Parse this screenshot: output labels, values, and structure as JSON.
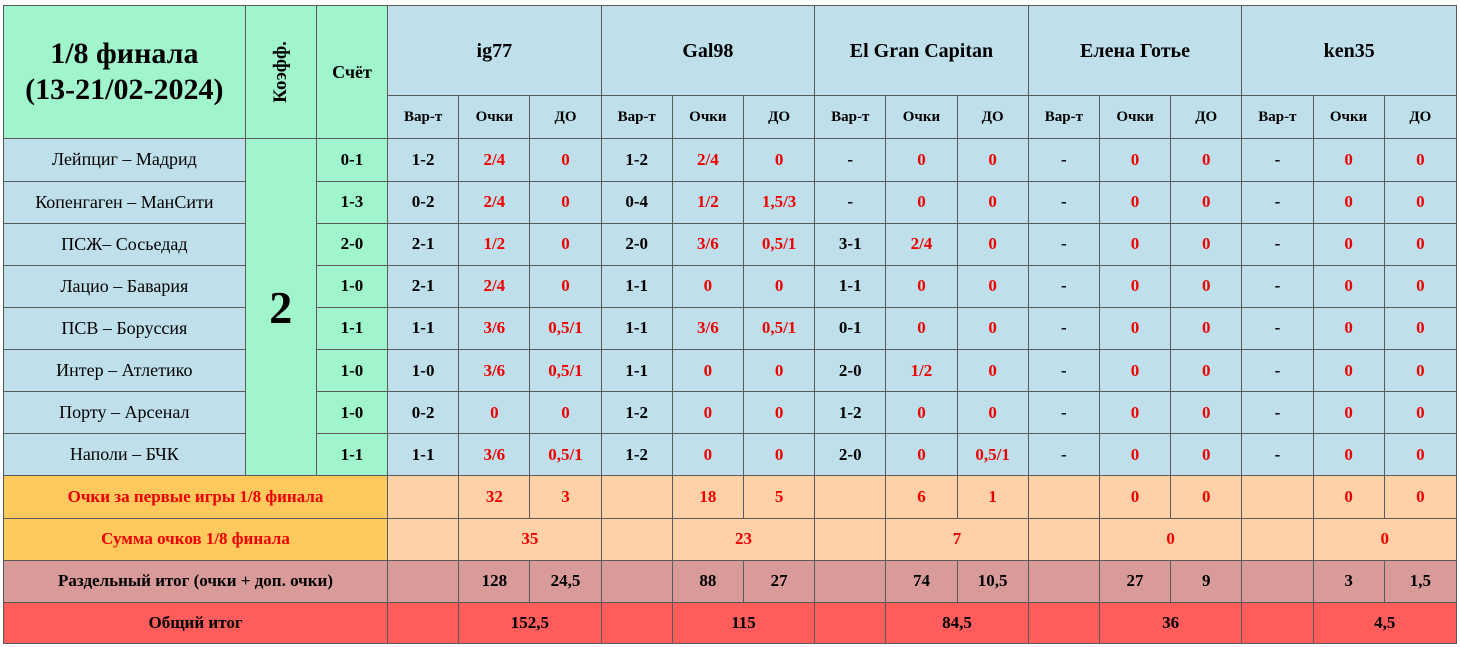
{
  "header": {
    "title_line1": "1/8 финала",
    "title_line2": "(13-21/02-2024)",
    "coef_label": "Коэфф.",
    "score_label": "Счёт",
    "sub_labels": [
      "Вар-т",
      "Очки",
      "ДО"
    ]
  },
  "coefficient": "2",
  "players": [
    {
      "name": "ig77"
    },
    {
      "name": "Gal98"
    },
    {
      "name": "El Gran Capitan"
    },
    {
      "name": "Елена Готье"
    },
    {
      "name": "ken35"
    }
  ],
  "matches": [
    {
      "name": "Лейпциг – Мадрид",
      "score": "0-1",
      "picks": [
        [
          "1-2",
          "2/4",
          "0"
        ],
        [
          "1-2",
          "2/4",
          "0"
        ],
        [
          "-",
          "0",
          "0"
        ],
        [
          "-",
          "0",
          "0"
        ],
        [
          "-",
          "0",
          "0"
        ]
      ]
    },
    {
      "name": "Копенгаген – МанСити",
      "score": "1-3",
      "picks": [
        [
          "0-2",
          "2/4",
          "0"
        ],
        [
          "0-4",
          "1/2",
          "1,5/3"
        ],
        [
          "-",
          "0",
          "0"
        ],
        [
          "-",
          "0",
          "0"
        ],
        [
          "-",
          "0",
          "0"
        ]
      ]
    },
    {
      "name": "ПСЖ– Сосьедад",
      "score": "2-0",
      "picks": [
        [
          "2-1",
          "1/2",
          "0"
        ],
        [
          "2-0",
          "3/6",
          "0,5/1"
        ],
        [
          "3-1",
          "2/4",
          "0"
        ],
        [
          "-",
          "0",
          "0"
        ],
        [
          "-",
          "0",
          "0"
        ]
      ]
    },
    {
      "name": "Лацио – Бавария",
      "score": "1-0",
      "picks": [
        [
          "2-1",
          "2/4",
          "0"
        ],
        [
          "1-1",
          "0",
          "0"
        ],
        [
          "1-1",
          "0",
          "0"
        ],
        [
          "-",
          "0",
          "0"
        ],
        [
          "-",
          "0",
          "0"
        ]
      ]
    },
    {
      "name": "ПСВ – Боруссия",
      "score": "1-1",
      "picks": [
        [
          "1-1",
          "3/6",
          "0,5/1"
        ],
        [
          "1-1",
          "3/6",
          "0,5/1"
        ],
        [
          "0-1",
          "0",
          "0"
        ],
        [
          "-",
          "0",
          "0"
        ],
        [
          "-",
          "0",
          "0"
        ]
      ]
    },
    {
      "name": "Интер – Атлетико",
      "score": "1-0",
      "picks": [
        [
          "1-0",
          "3/6",
          "0,5/1"
        ],
        [
          "1-1",
          "0",
          "0"
        ],
        [
          "2-0",
          "1/2",
          "0"
        ],
        [
          "-",
          "0",
          "0"
        ],
        [
          "-",
          "0",
          "0"
        ]
      ]
    },
    {
      "name": "Порту – Арсенал",
      "score": "1-0",
      "picks": [
        [
          "0-2",
          "0",
          "0"
        ],
        [
          "1-2",
          "0",
          "0"
        ],
        [
          "1-2",
          "0",
          "0"
        ],
        [
          "-",
          "0",
          "0"
        ],
        [
          "-",
          "0",
          "0"
        ]
      ]
    },
    {
      "name": "Наполи – БЧК",
      "score": "1-1",
      "picks": [
        [
          "1-1",
          "3/6",
          "0,5/1"
        ],
        [
          "1-2",
          "0",
          "0"
        ],
        [
          "2-0",
          "0",
          "0,5/1"
        ],
        [
          "-",
          "0",
          "0"
        ],
        [
          "-",
          "0",
          "0"
        ]
      ]
    }
  ],
  "first_games": {
    "label": "Очки за первые игры 1/8 финала",
    "values": [
      [
        "32",
        "3"
      ],
      [
        "18",
        "5"
      ],
      [
        "6",
        "1"
      ],
      [
        "0",
        "0"
      ],
      [
        "0",
        "0"
      ]
    ]
  },
  "round_sum": {
    "label": "Сумма очков 1/8 финала",
    "values": [
      "35",
      "23",
      "7",
      "0",
      "0"
    ]
  },
  "split_total": {
    "label": "Раздельный итог (очки + доп. очки)",
    "values": [
      [
        "128",
        "24,5"
      ],
      [
        "88",
        "27"
      ],
      [
        "74",
        "10,5"
      ],
      [
        "27",
        "9"
      ],
      [
        "3",
        "1,5"
      ]
    ]
  },
  "grand_total": {
    "label": "Общий итог",
    "values": [
      "152,5",
      "115",
      "84,5",
      "36",
      "4,5"
    ]
  },
  "colors": {
    "mint": "#a0f5cd",
    "blue": "#bfdfea",
    "red_text": "#ee0000",
    "orange": "#ffc95e",
    "peach": "#ffd1a8",
    "rose": "#d99a9a",
    "total": "#ff5c5c"
  }
}
